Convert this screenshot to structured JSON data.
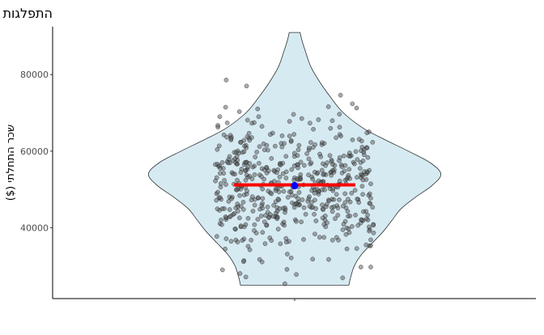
{
  "chart_data": {
    "type": "violin",
    "title": "התפלגות השכר ההתחלתי בקרב בוגרי מדעי המחשב",
    "xlabel": "",
    "ylabel": "שכר התחלתי ($)",
    "ylim": [
      21500,
      92500
    ],
    "yticks": [
      40000,
      60000,
      80000
    ],
    "ytick_labels": [
      "40000",
      "60000",
      "80000"
    ],
    "grid": false,
    "legend": "none",
    "fill_color": "#d6eaf2",
    "point_color": "#555555",
    "mean_line_color": "#ff0000",
    "mean_point_color": "#0000ff",
    "mean_line_value": 51200,
    "mean_point_value": 51000,
    "data_min": 25000,
    "data_max": 91000,
    "density_profile": [
      {
        "y": 25000,
        "half_width": 0.3
      },
      {
        "y": 27000,
        "half_width": 0.31
      },
      {
        "y": 30000,
        "half_width": 0.33
      },
      {
        "y": 33000,
        "half_width": 0.37
      },
      {
        "y": 36000,
        "half_width": 0.43
      },
      {
        "y": 39000,
        "half_width": 0.49
      },
      {
        "y": 42000,
        "half_width": 0.54
      },
      {
        "y": 45000,
        "half_width": 0.59
      },
      {
        "y": 48000,
        "half_width": 0.67
      },
      {
        "y": 51000,
        "half_width": 0.76
      },
      {
        "y": 54000,
        "half_width": 0.81
      },
      {
        "y": 57000,
        "half_width": 0.75
      },
      {
        "y": 60000,
        "half_width": 0.63
      },
      {
        "y": 63000,
        "half_width": 0.5
      },
      {
        "y": 66000,
        "half_width": 0.38
      },
      {
        "y": 70000,
        "half_width": 0.27
      },
      {
        "y": 74000,
        "half_width": 0.2
      },
      {
        "y": 78000,
        "half_width": 0.14
      },
      {
        "y": 82000,
        "half_width": 0.09
      },
      {
        "y": 86000,
        "half_width": 0.06
      },
      {
        "y": 89000,
        "half_width": 0.04
      },
      {
        "y": 91000,
        "half_width": 0.03
      }
    ]
  }
}
